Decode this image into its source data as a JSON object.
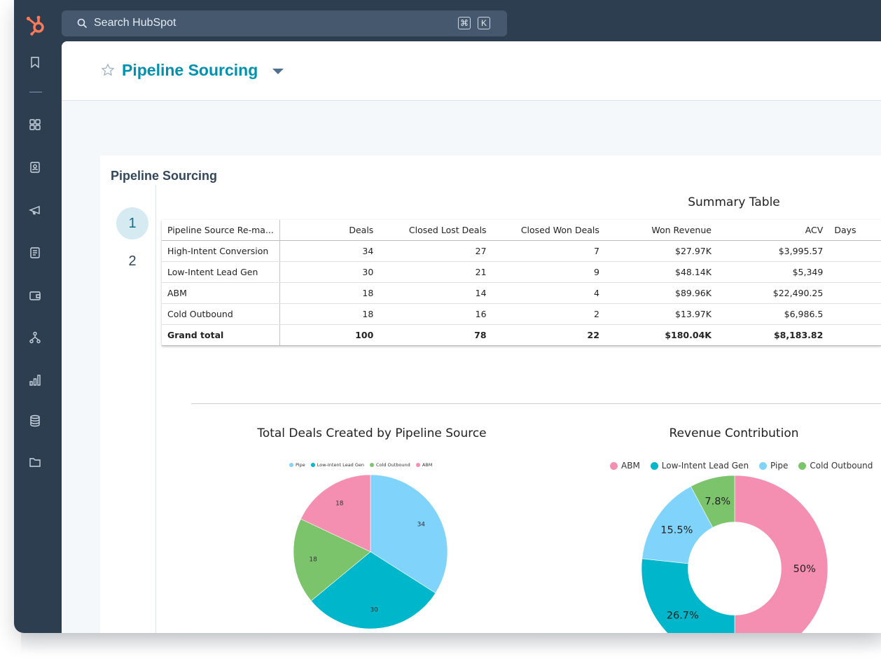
{
  "app": {
    "search_placeholder": "Search HubSpot",
    "shortcut_keys": [
      "⌘",
      "K"
    ],
    "page_title": "Pipeline Sourcing"
  },
  "sidebar": {
    "icons": [
      "bookmark-icon",
      "grid-icon",
      "contacts-icon",
      "megaphone-icon",
      "document-icon",
      "wallet-icon",
      "workflow-icon",
      "reports-icon",
      "database-icon",
      "folder-icon"
    ]
  },
  "panel": {
    "title": "Pipeline Sourcing",
    "pages": [
      "1",
      "2"
    ],
    "active_page": "1"
  },
  "summary_table": {
    "title": "Summary Table",
    "headers": [
      "Pipeline Source Re-ma...",
      "Deals",
      "Closed Lost Deals",
      "Closed Won Deals",
      "Won Revenue",
      "ACV",
      "Days"
    ],
    "rows": [
      [
        "High-Intent Conversion",
        "34",
        "27",
        "7",
        "$27.97K",
        "$3,995.57"
      ],
      [
        "Low-Intent Lead Gen",
        "30",
        "21",
        "9",
        "$48.14K",
        "$5,349"
      ],
      [
        "ABM",
        "18",
        "14",
        "4",
        "$89.96K",
        "$22,490.25"
      ],
      [
        "Cold Outbound",
        "18",
        "16",
        "2",
        "$13.97K",
        "$6,986.5"
      ]
    ],
    "total": [
      "Grand total",
      "100",
      "78",
      "22",
      "$180.04K",
      "$8,183.82"
    ]
  },
  "colors": {
    "ABM": "#f48fb1",
    "Low-Intent Lead Gen": "#00b6cb",
    "Pipe": "#80d4fb",
    "Cold Outbound": "#7cc46c"
  },
  "chart_data": [
    {
      "type": "pie",
      "title": "Total Deals Created by Pipeline Source",
      "legend": [
        "Pipe",
        "Low-Intent Lead Gen",
        "Cold Outbound",
        "ABM"
      ],
      "legend_position": "top",
      "slices": [
        {
          "label": "Pipe",
          "value": 34
        },
        {
          "label": "Low-Intent Lead Gen",
          "value": 30
        },
        {
          "label": "Cold Outbound",
          "value": 18
        },
        {
          "label": "ABM",
          "value": 18
        }
      ]
    },
    {
      "type": "pie",
      "donut": true,
      "title": "Revenue Contribution",
      "legend": [
        "ABM",
        "Low-Intent Lead Gen",
        "Pipe",
        "Cold Outbound"
      ],
      "legend_position": "top",
      "slices": [
        {
          "label": "ABM",
          "value": 50,
          "display": "50%"
        },
        {
          "label": "Low-Intent Lead Gen",
          "value": 26.7,
          "display": "26.7%"
        },
        {
          "label": "Pipe",
          "value": 15.5,
          "display": "15.5%"
        },
        {
          "label": "Cold Outbound",
          "value": 7.8,
          "display": "7.8%"
        }
      ]
    }
  ]
}
